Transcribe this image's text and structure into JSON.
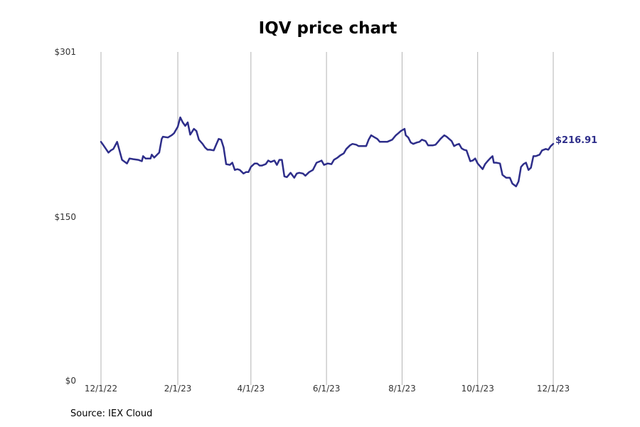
{
  "chart_data": {
    "type": "line",
    "title": "IQV price chart",
    "xlabel": "",
    "ylabel": "",
    "x_ticks": [
      "12/1/22",
      "2/1/23",
      "4/1/23",
      "6/1/23",
      "8/1/23",
      "10/1/23",
      "12/1/23"
    ],
    "y_ticks": [
      "$0",
      "$150",
      "$301"
    ],
    "xlim": [
      "2022-12-01",
      "2023-12-01"
    ],
    "ylim": [
      0,
      301
    ],
    "grid": "vertical",
    "line_color": "#2e2e8a",
    "end_label": "$216.91",
    "source": "Source: IEX Cloud",
    "series": [
      {
        "points": [
          [
            "2022-12-01",
            218.7
          ],
          [
            "2022-12-03",
            215.5
          ],
          [
            "2022-12-07",
            208.9
          ],
          [
            "2022-12-09",
            210.9
          ],
          [
            "2022-12-11",
            212.2
          ],
          [
            "2022-12-14",
            218.7
          ],
          [
            "2022-12-18",
            202.2
          ],
          [
            "2022-12-22",
            198.9
          ],
          [
            "2022-12-24",
            203.5
          ],
          [
            "2022-12-27",
            202.9
          ],
          [
            "2022-12-31",
            202.2
          ],
          [
            "2023-01-03",
            201.0
          ],
          [
            "2023-01-04",
            205.6
          ],
          [
            "2023-01-06",
            203.5
          ],
          [
            "2023-01-10",
            203.5
          ],
          [
            "2023-01-11",
            207.0
          ],
          [
            "2023-01-13",
            204.3
          ],
          [
            "2023-01-17",
            208.9
          ],
          [
            "2023-01-19",
            221.4
          ],
          [
            "2023-01-20",
            223.4
          ],
          [
            "2023-01-24",
            222.7
          ],
          [
            "2023-01-27",
            224.7
          ],
          [
            "2023-01-29",
            226.6
          ],
          [
            "2023-01-30",
            228.6
          ],
          [
            "2023-02-01",
            232.5
          ],
          [
            "2023-02-03",
            241.1
          ],
          [
            "2023-02-05",
            236.5
          ],
          [
            "2023-02-07",
            233.3
          ],
          [
            "2023-02-09",
            236.5
          ],
          [
            "2023-02-11",
            225.3
          ],
          [
            "2023-02-14",
            230.6
          ],
          [
            "2023-02-16",
            228.6
          ],
          [
            "2023-02-18",
            220.7
          ],
          [
            "2023-02-21",
            216.8
          ],
          [
            "2023-02-23",
            213.5
          ],
          [
            "2023-02-25",
            211.5
          ],
          [
            "2023-02-27",
            211.5
          ],
          [
            "2023-03-02",
            210.9
          ],
          [
            "2023-03-04",
            216.1
          ],
          [
            "2023-03-06",
            221.4
          ],
          [
            "2023-03-08",
            220.7
          ],
          [
            "2023-03-10",
            213.5
          ],
          [
            "2023-03-12",
            198.3
          ],
          [
            "2023-03-15",
            197.6
          ],
          [
            "2023-03-17",
            199.6
          ],
          [
            "2023-03-19",
            193.0
          ],
          [
            "2023-03-21",
            193.7
          ],
          [
            "2023-03-23",
            193.0
          ],
          [
            "2023-03-26",
            189.7
          ],
          [
            "2023-03-28",
            191.0
          ],
          [
            "2023-03-30",
            191.0
          ],
          [
            "2023-04-01",
            195.7
          ],
          [
            "2023-04-04",
            198.9
          ],
          [
            "2023-04-06",
            198.9
          ],
          [
            "2023-04-08",
            197.0
          ],
          [
            "2023-04-10",
            197.0
          ],
          [
            "2023-04-13",
            198.3
          ],
          [
            "2023-04-15",
            201.6
          ],
          [
            "2023-04-17",
            200.3
          ],
          [
            "2023-04-20",
            201.6
          ],
          [
            "2023-04-22",
            197.6
          ],
          [
            "2023-04-24",
            202.2
          ],
          [
            "2023-04-26",
            202.2
          ],
          [
            "2023-04-28",
            187.1
          ],
          [
            "2023-04-30",
            186.4
          ],
          [
            "2023-05-03",
            190.4
          ],
          [
            "2023-05-06",
            185.8
          ],
          [
            "2023-05-08",
            189.7
          ],
          [
            "2023-05-10",
            190.4
          ],
          [
            "2023-05-13",
            189.7
          ],
          [
            "2023-05-15",
            187.7
          ],
          [
            "2023-05-18",
            191.0
          ],
          [
            "2023-05-21",
            193.0
          ],
          [
            "2023-05-24",
            199.6
          ],
          [
            "2023-05-27",
            201.0
          ],
          [
            "2023-05-28",
            201.6
          ],
          [
            "2023-05-30",
            197.6
          ],
          [
            "2023-06-02",
            198.9
          ],
          [
            "2023-06-05",
            198.3
          ],
          [
            "2023-06-07",
            202.2
          ],
          [
            "2023-06-10",
            204.3
          ],
          [
            "2023-06-12",
            206.2
          ],
          [
            "2023-06-15",
            208.2
          ],
          [
            "2023-06-17",
            212.2
          ],
          [
            "2023-06-20",
            215.5
          ],
          [
            "2023-06-22",
            216.8
          ],
          [
            "2023-06-25",
            216.1
          ],
          [
            "2023-06-27",
            214.8
          ],
          [
            "2023-06-29",
            214.8
          ],
          [
            "2023-07-03",
            214.8
          ],
          [
            "2023-07-05",
            220.7
          ],
          [
            "2023-07-07",
            224.7
          ],
          [
            "2023-07-10",
            222.7
          ],
          [
            "2023-07-12",
            221.4
          ],
          [
            "2023-07-14",
            218.7
          ],
          [
            "2023-07-17",
            218.7
          ],
          [
            "2023-07-20",
            218.7
          ],
          [
            "2023-07-24",
            220.7
          ],
          [
            "2023-07-27",
            224.7
          ],
          [
            "2023-07-29",
            226.6
          ],
          [
            "2023-07-31",
            228.6
          ],
          [
            "2023-08-03",
            230.6
          ],
          [
            "2023-08-04",
            224.7
          ],
          [
            "2023-08-06",
            222.7
          ],
          [
            "2023-08-08",
            218.1
          ],
          [
            "2023-08-10",
            216.8
          ],
          [
            "2023-08-13",
            218.1
          ],
          [
            "2023-08-15",
            218.7
          ],
          [
            "2023-08-17",
            220.7
          ],
          [
            "2023-08-20",
            219.4
          ],
          [
            "2023-08-22",
            215.5
          ],
          [
            "2023-08-26",
            215.5
          ],
          [
            "2023-08-28",
            216.1
          ],
          [
            "2023-08-30",
            218.7
          ],
          [
            "2023-09-01",
            221.4
          ],
          [
            "2023-09-04",
            224.7
          ],
          [
            "2023-09-06",
            223.4
          ],
          [
            "2023-09-08",
            221.4
          ],
          [
            "2023-09-10",
            219.4
          ],
          [
            "2023-09-12",
            214.8
          ],
          [
            "2023-09-14",
            216.1
          ],
          [
            "2023-09-16",
            216.8
          ],
          [
            "2023-09-18",
            212.8
          ],
          [
            "2023-09-20",
            211.5
          ],
          [
            "2023-09-22",
            210.9
          ],
          [
            "2023-09-25",
            201.0
          ],
          [
            "2023-09-27",
            201.6
          ],
          [
            "2023-09-29",
            203.5
          ],
          [
            "2023-10-01",
            198.9
          ],
          [
            "2023-10-03",
            196.3
          ],
          [
            "2023-10-05",
            193.7
          ],
          [
            "2023-10-07",
            198.3
          ],
          [
            "2023-10-09",
            201.0
          ],
          [
            "2023-10-11",
            203.5
          ],
          [
            "2023-10-13",
            205.6
          ],
          [
            "2023-10-14",
            199.6
          ],
          [
            "2023-10-16",
            199.6
          ],
          [
            "2023-10-19",
            198.9
          ],
          [
            "2023-10-21",
            188.4
          ],
          [
            "2023-10-24",
            185.8
          ],
          [
            "2023-10-27",
            185.8
          ],
          [
            "2023-10-29",
            180.5
          ],
          [
            "2023-11-01",
            177.9
          ],
          [
            "2023-11-03",
            182.5
          ],
          [
            "2023-11-05",
            195.7
          ],
          [
            "2023-11-07",
            198.3
          ],
          [
            "2023-11-09",
            199.6
          ],
          [
            "2023-11-11",
            193.0
          ],
          [
            "2023-11-13",
            195.0
          ],
          [
            "2023-11-15",
            205.6
          ],
          [
            "2023-11-17",
            205.6
          ],
          [
            "2023-11-20",
            207.0
          ],
          [
            "2023-11-22",
            210.9
          ],
          [
            "2023-11-25",
            212.2
          ],
          [
            "2023-11-27",
            211.5
          ],
          [
            "2023-11-29",
            214.8
          ],
          [
            "2023-12-01",
            216.91
          ]
        ]
      }
    ]
  }
}
